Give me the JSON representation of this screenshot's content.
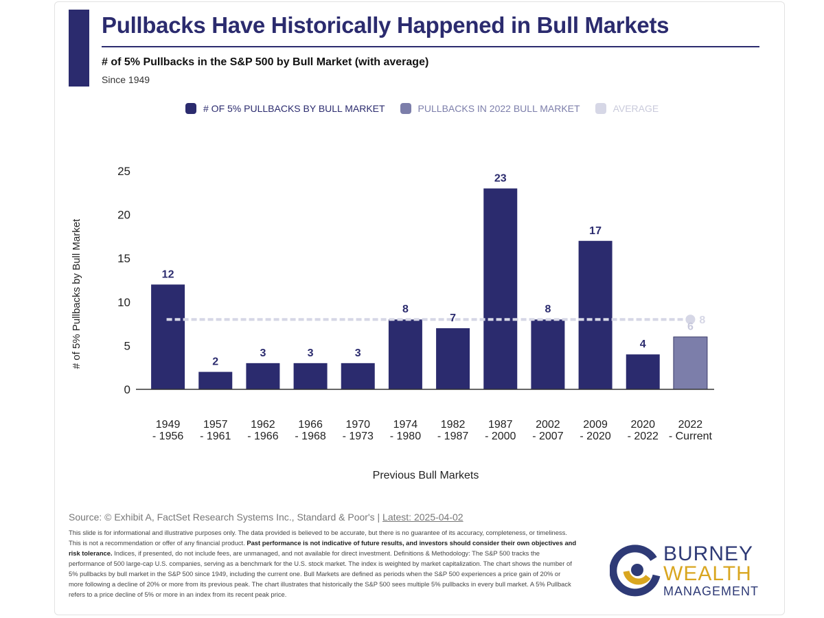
{
  "header": {
    "title": "Pullbacks Have Historically Happened in Bull Markets",
    "subtitle": "# of 5% Pullbacks in the S&P 500 by Bull Market (with average)",
    "since": "Since 1949"
  },
  "legend": [
    {
      "label": "# OF 5% PULLBACKS BY BULL MARKET",
      "color": "#2b2b6e"
    },
    {
      "label": "PULLBACKS IN 2022 BULL MARKET",
      "color": "#7c7eaa"
    },
    {
      "label": "AVERAGE",
      "color": "#d6d7e6"
    }
  ],
  "chart_data": {
    "type": "bar",
    "categories": [
      [
        "1949",
        "- 1956"
      ],
      [
        "1957",
        "- 1961"
      ],
      [
        "1962",
        "- 1966"
      ],
      [
        "1966",
        "- 1968"
      ],
      [
        "1970",
        "- 1973"
      ],
      [
        "1974",
        "- 1980"
      ],
      [
        "1982",
        "- 1987"
      ],
      [
        "1987",
        "- 2000"
      ],
      [
        "2002",
        "- 2007"
      ],
      [
        "2009",
        "- 2020"
      ],
      [
        "2020",
        "- 2022"
      ],
      [
        "2022",
        "- Current"
      ]
    ],
    "values": [
      12,
      2,
      3,
      3,
      3,
      8,
      7,
      23,
      8,
      17,
      4,
      6
    ],
    "highlight_index": 11,
    "average": 8,
    "average_label": "8",
    "xlabel": "Previous Bull Markets",
    "ylabel": "# of 5% Pullbacks by Bull Market",
    "ylim": [
      0,
      25
    ],
    "yticks": [
      0,
      5,
      10,
      15,
      20,
      25
    ],
    "colors": {
      "bar": "#2b2b6e",
      "highlight": "#7c7eaa",
      "average": "#d6d7e6",
      "highlight_label": "#c7c8dc"
    },
    "grid": false,
    "legend_position": "top"
  },
  "footer": {
    "source_prefix": "Source: © Exhibit A, FactSet Research Systems Inc., Standard & Poor's |",
    "source_latest": "Latest: 2025-04-02",
    "disclaimer_1": "This slide is for informational and illustrative purposes only. The data provided is believed to be accurate, but there is no guarantee of its accuracy, completeness, or timeliness. This is not a recommendation or offer of any financial product.",
    "disclaimer_bold": "Past performance is not indicative of future results, and investors should consider their own objectives and risk tolerance.",
    "disclaimer_2": "Indices, if presented, do not include fees, are unmanaged, and not available for direct investment. Definitions & Methodology: The S&P 500 tracks the performance of 500 large-cap U.S. companies, serving as a benchmark for the U.S. stock market. The index is weighted by market capitalization. The chart shows the number of 5% pullbacks by bull market in the S&P 500 since 1949, including the current one. Bull Markets are defined as periods when the S&P 500 experiences a price gain of 20% or more following a decline of 20% or more from its previous peak. The chart illustrates that historically the S&P 500 sees multiple 5% pullbacks in every bull market. A 5% Pullback refers to a price decline of 5% or more in an index from its recent peak price."
  },
  "logo": {
    "line1": "BURNEY",
    "line2": "WEALTH",
    "line3": "MANAGEMENT",
    "colors": {
      "navy": "#2e3a76",
      "gold": "#d9a620"
    }
  }
}
